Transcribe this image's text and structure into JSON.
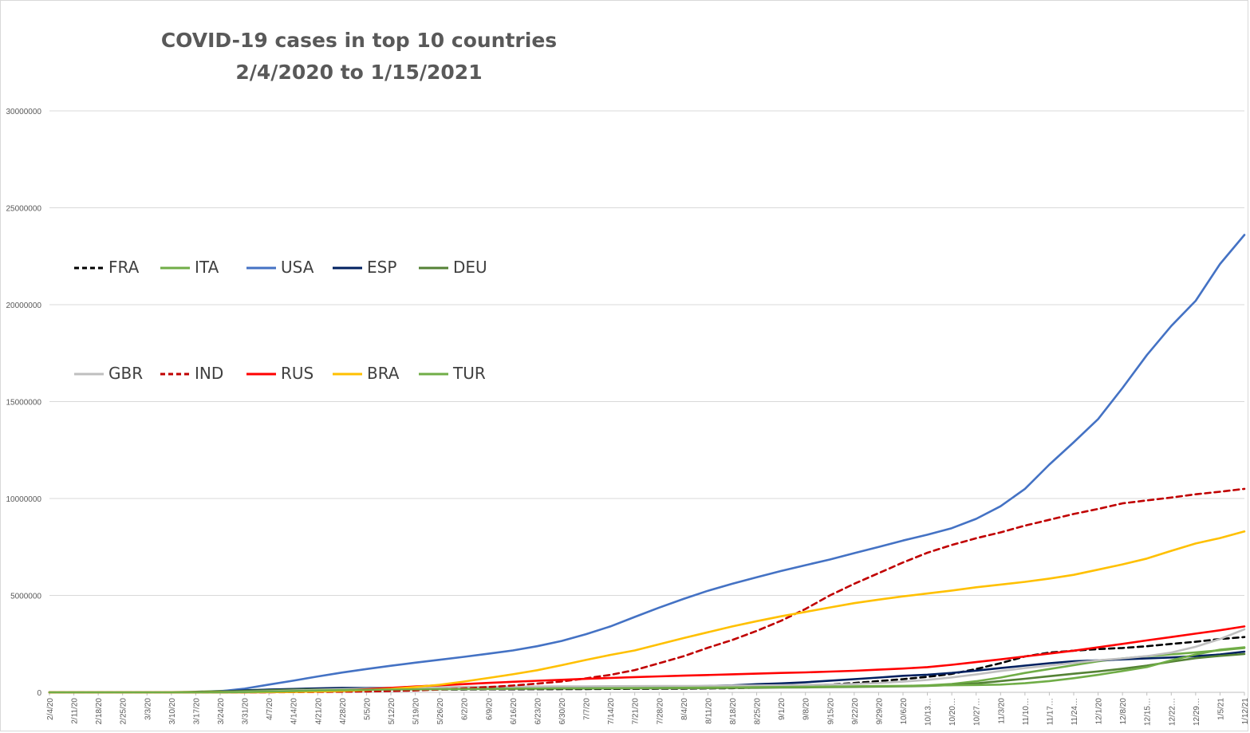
{
  "chart_data": {
    "type": "line",
    "title": "COVID-19 cases in top 10 countries",
    "subtitle": "2/4/2020 to 1/15/2021",
    "xlabel": "",
    "ylabel": "",
    "ylim": [
      0,
      30000000
    ],
    "yticks": [
      "0",
      "5000000",
      "10000000",
      "15000000",
      "20000000",
      "25000000",
      "30000000"
    ],
    "grid": true,
    "legend_position": "left, two rows",
    "x": [
      "2/4/20",
      "2/11/20",
      "2/18/20",
      "2/25/20",
      "3/3/20",
      "3/10/20",
      "3/17/20",
      "3/24/20",
      "3/31/20",
      "4/7/20",
      "4/14/20",
      "4/21/20",
      "4/28/20",
      "5/5/20",
      "5/12/20",
      "5/19/20",
      "5/26/20",
      "6/2/20",
      "6/9/20",
      "6/16/20",
      "6/23/20",
      "6/30/20",
      "7/7/20",
      "7/14/20",
      "7/21/20",
      "7/28/20",
      "8/4/20",
      "8/11/20",
      "8/18/20",
      "8/25/20",
      "9/1/20",
      "9/8/20",
      "9/15/20",
      "9/22/20",
      "9/29/20",
      "10/6/20",
      "10/13…",
      "10/20…",
      "10/27…",
      "11/3/20",
      "11/10…",
      "11/17…",
      "11/24…",
      "12/1/20",
      "12/8/20",
      "12/15…",
      "12/22…",
      "12/29…",
      "1/5/21",
      "1/12/21"
    ],
    "series": [
      {
        "name": "FRA",
        "color": "#000000",
        "dash": "dashed",
        "values": [
          0,
          0,
          0,
          0,
          0,
          2000,
          7000,
          22000,
          50000,
          80000,
          100000,
          120000,
          130000,
          140000,
          140000,
          145000,
          150000,
          150000,
          155000,
          155000,
          160000,
          165000,
          170000,
          175000,
          180000,
          185000,
          190000,
          200000,
          215000,
          245000,
          290000,
          340000,
          400000,
          480000,
          580000,
          680000,
          800000,
          950000,
          1200000,
          1500000,
          1850000,
          2050000,
          2150000,
          2230000,
          2290000,
          2380000,
          2500000,
          2610000,
          2750000,
          2850000
        ]
      },
      {
        "name": "ITA",
        "color": "#70ad47",
        "dash": "solid",
        "values": [
          0,
          0,
          0,
          0,
          2500,
          10000,
          30000,
          70000,
          105000,
          135000,
          160000,
          180000,
          200000,
          212000,
          220000,
          227000,
          231000,
          234000,
          236000,
          238000,
          239000,
          240500,
          242000,
          243500,
          245000,
          247000,
          248500,
          250000,
          254000,
          262000,
          270000,
          280000,
          290000,
          300000,
          315000,
          330000,
          360000,
          430000,
          570000,
          760000,
          1000000,
          1200000,
          1400000,
          1600000,
          1750000,
          1860000,
          1960000,
          2060000,
          2170000,
          2290000
        ]
      },
      {
        "name": "USA",
        "color": "#4472c4",
        "dash": "solid",
        "values": [
          10,
          15,
          15,
          20,
          100,
          1000,
          6000,
          55000,
          190000,
          400000,
          600000,
          820000,
          1020000,
          1200000,
          1370000,
          1530000,
          1680000,
          1830000,
          1990000,
          2160000,
          2380000,
          2650000,
          3000000,
          3400000,
          3890000,
          4370000,
          4820000,
          5240000,
          5600000,
          5940000,
          6260000,
          6560000,
          6850000,
          7180000,
          7500000,
          7830000,
          8130000,
          8470000,
          8950000,
          9600000,
          10500000,
          11750000,
          12900000,
          14100000,
          15700000,
          17400000,
          18900000,
          20200000,
          22100000,
          23600000
        ]
      },
      {
        "name": "ESP",
        "color": "#002060",
        "dash": "solid",
        "values": [
          0,
          0,
          0,
          0,
          100,
          1500,
          12000,
          40000,
          95000,
          140000,
          172000,
          204000,
          232000,
          220000,
          228000,
          232000,
          236000,
          239000,
          242000,
          244000,
          247000,
          249000,
          252000,
          256000,
          266000,
          280000,
          300000,
          330000,
          360000,
          420000,
          460000,
          520000,
          600000,
          680000,
          760000,
          850000,
          910000,
          1000000,
          1120000,
          1250000,
          1380000,
          1500000,
          1600000,
          1650000,
          1700000,
          1750000,
          1800000,
          1870000,
          1950000,
          2100000
        ]
      },
      {
        "name": "DEU",
        "color": "#548235",
        "dash": "solid",
        "values": [
          5,
          15,
          15,
          20,
          250,
          1600,
          10000,
          35000,
          70000,
          108000,
          135000,
          148000,
          160000,
          167000,
          172000,
          176000,
          181000,
          184000,
          186000,
          188000,
          192000,
          196000,
          198000,
          201000,
          205000,
          209000,
          213000,
          220000,
          228000,
          236000,
          245000,
          255000,
          266000,
          280000,
          295000,
          310000,
          335000,
          380000,
          460000,
          580000,
          700000,
          830000,
          960000,
          1080000,
          1220000,
          1380000,
          1580000,
          1760000,
          1880000,
          1980000
        ]
      },
      {
        "name": "GBR",
        "color": "#bfbfbf",
        "dash": "solid",
        "values": [
          0,
          0,
          0,
          0,
          50,
          400,
          2000,
          8000,
          25000,
          55000,
          90000,
          130000,
          160000,
          190000,
          220000,
          245000,
          265000,
          275000,
          285000,
          292000,
          300000,
          305000,
          310000,
          315000,
          320000,
          325000,
          330000,
          335000,
          345000,
          355000,
          365000,
          380000,
          400000,
          430000,
          480000,
          550000,
          640000,
          770000,
          920000,
          1100000,
          1250000,
          1380000,
          1520000,
          1650000,
          1750000,
          1870000,
          2050000,
          2350000,
          2750000,
          3250000
        ]
      },
      {
        "name": "IND",
        "color": "#c00000",
        "dash": "dashed",
        "values": [
          0,
          0,
          0,
          0,
          10,
          60,
          150,
          500,
          1500,
          5000,
          11000,
          20000,
          30000,
          47000,
          71000,
          100000,
          145000,
          200000,
          270000,
          350000,
          450000,
          560000,
          720000,
          900000,
          1150000,
          1500000,
          1860000,
          2300000,
          2700000,
          3170000,
          3690000,
          4300000,
          5000000,
          5600000,
          6150000,
          6700000,
          7200000,
          7600000,
          7950000,
          8250000,
          8600000,
          8900000,
          9200000,
          9460000,
          9750000,
          9900000,
          10050000,
          10220000,
          10350000,
          10500000
        ]
      },
      {
        "name": "RUS",
        "color": "#ff0000",
        "dash": "solid",
        "values": [
          0,
          0,
          0,
          0,
          5,
          20,
          100,
          450,
          2500,
          8000,
          21000,
          53000,
          93000,
          155000,
          232000,
          300000,
          362000,
          423000,
          485000,
          545000,
          598000,
          647000,
          694000,
          739000,
          784000,
          822000,
          862000,
          895000,
          930000,
          965000,
          1000000,
          1030000,
          1070000,
          1110000,
          1170000,
          1225000,
          1300000,
          1420000,
          1560000,
          1700000,
          1850000,
          2000000,
          2150000,
          2320000,
          2500000,
          2680000,
          2850000,
          3030000,
          3200000,
          3400000
        ]
      },
      {
        "name": "BRA",
        "color": "#ffc000",
        "dash": "solid",
        "values": [
          0,
          0,
          0,
          1,
          2,
          30,
          300,
          2200,
          5700,
          14000,
          25000,
          42000,
          71000,
          115000,
          178000,
          270000,
          390000,
          555000,
          740000,
          930000,
          1140000,
          1400000,
          1670000,
          1930000,
          2160000,
          2480000,
          2800000,
          3100000,
          3400000,
          3670000,
          3920000,
          4150000,
          4380000,
          4600000,
          4780000,
          4950000,
          5100000,
          5250000,
          5420000,
          5560000,
          5700000,
          5870000,
          6060000,
          6330000,
          6600000,
          6900000,
          7300000,
          7680000,
          7960000,
          8300000
        ]
      },
      {
        "name": "TUR",
        "color": "#70ad47",
        "dash": "solid",
        "values": [
          0,
          0,
          0,
          0,
          0,
          2,
          60,
          1800,
          13500,
          38000,
          66000,
          95000,
          115000,
          130000,
          142000,
          152000,
          160000,
          166000,
          173000,
          185000,
          192000,
          200000,
          207000,
          213000,
          220000,
          228000,
          234000,
          243000,
          250000,
          265000,
          275000,
          285000,
          295000,
          310000,
          320000,
          330000,
          345000,
          365000,
          380000,
          400000,
          470000,
          580000,
          730000,
          900000,
          1100000,
          1300000,
          1650000,
          1950000,
          2200000,
          2320000
        ]
      }
    ]
  }
}
